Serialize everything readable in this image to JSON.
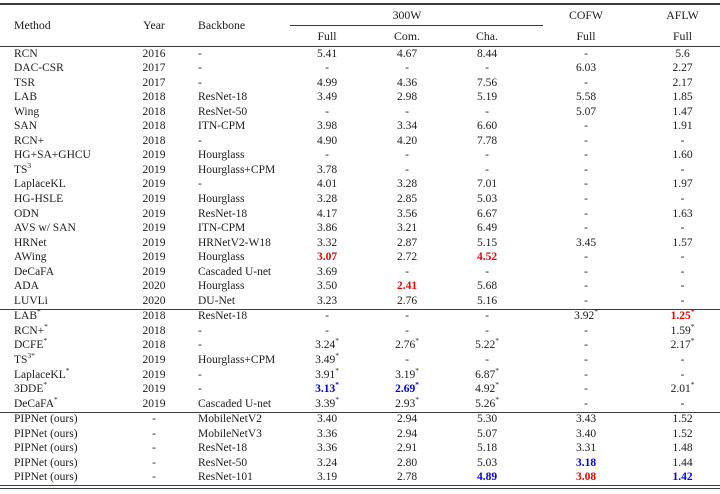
{
  "table": {
    "columns": [
      "Method",
      "Year",
      "Backbone"
    ],
    "groups": [
      {
        "label": "300W",
        "subcols": [
          "Full",
          "Com.",
          "Cha."
        ]
      },
      {
        "label": "COFW",
        "subcols": [
          "Full"
        ]
      },
      {
        "label": "AFLW",
        "subcols": [
          "Full"
        ]
      }
    ],
    "colors": {
      "red": "#ee0000",
      "blue": "#0000ee"
    },
    "sections": [
      {
        "name": "prior-methods",
        "rows": [
          {
            "m": {
              "t": "RCN"
            },
            "y": "2016",
            "b": "-",
            "v": [
              "5.41",
              "4.67",
              "8.44",
              "-",
              "5.6"
            ]
          },
          {
            "m": {
              "t": "DAC-CSR"
            },
            "y": "2017",
            "b": "-",
            "v": [
              "-",
              "-",
              "-",
              "6.03",
              "2.27"
            ]
          },
          {
            "m": {
              "t": "TSR"
            },
            "y": "2017",
            "b": "-",
            "v": [
              "4.99",
              "4.36",
              "7.56",
              "-",
              "2.17"
            ]
          },
          {
            "m": {
              "t": "LAB"
            },
            "y": "2018",
            "b": "ResNet-18",
            "v": [
              "3.49",
              "2.98",
              "5.19",
              "5.58",
              "1.85"
            ]
          },
          {
            "m": {
              "t": "Wing"
            },
            "y": "2018",
            "b": "ResNet-50",
            "v": [
              "-",
              "-",
              "-",
              "5.07",
              "1.47"
            ]
          },
          {
            "m": {
              "t": "SAN"
            },
            "y": "2018",
            "b": "ITN-CPM",
            "v": [
              "3.98",
              "3.34",
              "6.60",
              "-",
              "1.91"
            ]
          },
          {
            "m": {
              "t": "RCN+"
            },
            "y": "2018",
            "b": "-",
            "v": [
              "4.90",
              "4.20",
              "7.78",
              "-",
              "-"
            ]
          },
          {
            "m": {
              "t": "HG+SA+GHCU"
            },
            "y": "2019",
            "b": "Hourglass",
            "v": [
              "-",
              "-",
              "-",
              "-",
              "1.60"
            ]
          },
          {
            "m": {
              "t": "TS",
              "sup": "3"
            },
            "y": "2019",
            "b": "Hourglass+CPM",
            "v": [
              "3.78",
              "-",
              "-",
              "-",
              "-"
            ]
          },
          {
            "m": {
              "t": "LaplaceKL"
            },
            "y": "2019",
            "b": "-",
            "v": [
              "4.01",
              "3.28",
              "7.01",
              "-",
              "1.97"
            ]
          },
          {
            "m": {
              "t": "HG-HSLE"
            },
            "y": "2019",
            "b": "Hourglass",
            "v": [
              "3.28",
              "2.85",
              "5.03",
              "-",
              "-"
            ]
          },
          {
            "m": {
              "t": "ODN"
            },
            "y": "2019",
            "b": "ResNet-18",
            "v": [
              "4.17",
              "3.56",
              "6.67",
              "-",
              "1.63"
            ]
          },
          {
            "m": {
              "t": "AVS w/ SAN"
            },
            "y": "2019",
            "b": "ITN-CPM",
            "v": [
              "3.86",
              "3.21",
              "6.49",
              "-",
              "-"
            ]
          },
          {
            "m": {
              "t": "HRNet"
            },
            "y": "2019",
            "b": "HRNetV2-W18",
            "v": [
              "3.32",
              "2.87",
              "5.15",
              "3.45",
              "1.57"
            ]
          },
          {
            "m": {
              "t": "AWing"
            },
            "y": "2019",
            "b": "Hourglass",
            "v": [
              {
                "t": "3.07",
                "c": "red"
              },
              "2.72",
              {
                "t": "4.52",
                "c": "red"
              },
              "-",
              "-"
            ]
          },
          {
            "m": {
              "t": "DeCaFA"
            },
            "y": "2019",
            "b": "Cascaded U-net",
            "v": [
              "3.69",
              "-",
              "-",
              "-",
              "-"
            ]
          },
          {
            "m": {
              "t": "ADA"
            },
            "y": "2020",
            "b": "Hourglass",
            "v": [
              "3.50",
              {
                "t": "2.41",
                "c": "red"
              },
              "5.68",
              "-",
              "-"
            ]
          },
          {
            "m": {
              "t": "LUVLi"
            },
            "y": "2020",
            "b": "DU-Net",
            "v": [
              "3.23",
              "2.76",
              "5.16",
              "-",
              "-"
            ]
          }
        ]
      },
      {
        "name": "extra-data-methods",
        "rows": [
          {
            "m": {
              "t": "LAB",
              "sup": "*"
            },
            "y": "2018",
            "b": "ResNet-18",
            "v": [
              "-",
              "-",
              "-",
              {
                "t": "3.92",
                "sup": "*"
              },
              {
                "t": "1.25",
                "sup": "*",
                "c": "red"
              }
            ]
          },
          {
            "m": {
              "t": "RCN+",
              "sup": "*"
            },
            "y": "2018",
            "b": "-",
            "v": [
              "-",
              "-",
              "-",
              "-",
              {
                "t": "1.59",
                "sup": "*"
              }
            ]
          },
          {
            "m": {
              "t": "DCFE",
              "sup": "*"
            },
            "y": "2018",
            "b": "-",
            "v": [
              {
                "t": "3.24",
                "sup": "*"
              },
              {
                "t": "2.76",
                "sup": "*"
              },
              {
                "t": "5.22",
                "sup": "*"
              },
              "-",
              {
                "t": "2.17",
                "sup": "*"
              }
            ]
          },
          {
            "m": {
              "t": "TS",
              "sup": "3*"
            },
            "y": "2019",
            "b": "Hourglass+CPM",
            "v": [
              {
                "t": "3.49",
                "sup": "*"
              },
              "-",
              "-",
              "-",
              "-"
            ]
          },
          {
            "m": {
              "t": "LaplaceKL",
              "sup": "*"
            },
            "y": "2019",
            "b": "-",
            "v": [
              {
                "t": "3.91",
                "sup": "*"
              },
              {
                "t": "3.19",
                "sup": "*"
              },
              {
                "t": "6.87",
                "sup": "*"
              },
              "-",
              "-"
            ]
          },
          {
            "m": {
              "t": "3DDE",
              "sup": "*"
            },
            "y": "2019",
            "b": "-",
            "v": [
              {
                "t": "3.13",
                "sup": "*",
                "c": "blue"
              },
              {
                "t": "2.69",
                "sup": "*",
                "c": "blue"
              },
              {
                "t": "4.92",
                "sup": "*"
              },
              "-",
              {
                "t": "2.01",
                "sup": "*"
              }
            ]
          },
          {
            "m": {
              "t": "DeCaFA",
              "sup": "*"
            },
            "y": "2019",
            "b": "Cascaded U-net",
            "v": [
              {
                "t": "3.39",
                "sup": "*"
              },
              {
                "t": "2.93",
                "sup": "*"
              },
              {
                "t": "5.26",
                "sup": "*"
              },
              "-",
              "-"
            ]
          }
        ]
      },
      {
        "name": "pipnet-ours",
        "rows": [
          {
            "m": {
              "t": "PIPNet (ours)"
            },
            "y": "-",
            "b": "MobileNetV2",
            "v": [
              "3.40",
              "2.94",
              "5.30",
              "3.43",
              "1.52"
            ]
          },
          {
            "m": {
              "t": "PIPNet (ours)"
            },
            "y": "-",
            "b": "MobileNetV3",
            "v": [
              "3.36",
              "2.94",
              "5.07",
              "3.40",
              "1.52"
            ]
          },
          {
            "m": {
              "t": "PIPNet (ours)"
            },
            "y": "-",
            "b": "ResNet-18",
            "v": [
              "3.36",
              "2.91",
              "5.18",
              "3.31",
              "1.48"
            ]
          },
          {
            "m": {
              "t": "PIPNet (ours)"
            },
            "y": "-",
            "b": "ResNet-50",
            "v": [
              "3.24",
              "2.80",
              "5.03",
              {
                "t": "3.18",
                "c": "blue"
              },
              "1.44"
            ]
          },
          {
            "m": {
              "t": "PIPNet (ours)"
            },
            "y": "-",
            "b": "ResNet-101",
            "v": [
              "3.19",
              "2.78",
              {
                "t": "4.89",
                "c": "blue"
              },
              {
                "t": "3.08",
                "c": "red"
              },
              {
                "t": "1.42",
                "c": "blue"
              }
            ]
          }
        ]
      }
    ]
  }
}
